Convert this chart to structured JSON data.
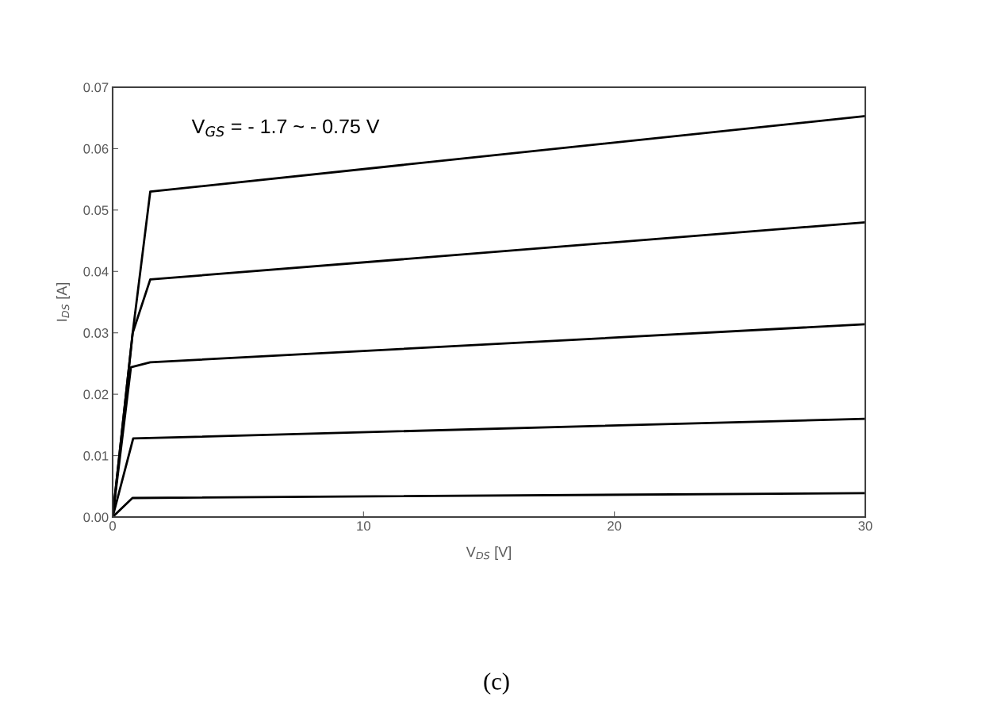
{
  "chart_data": {
    "type": "line",
    "xlabel": "V$_{DS}$ [V]",
    "ylabel": "I$_{DS}$ [A]",
    "annotations": [
      "V$_{GS}$ = - 1.7 ~ - 0.75 V",
      "(c)"
    ],
    "series": [
      {
        "color": "#000000",
        "x": [
          0,
          0.8,
          1.5,
          30
        ],
        "values": [
          0,
          0.03,
          0.053,
          0.0653
        ]
      },
      {
        "color": "#000000",
        "x": [
          0,
          0.8,
          1.5,
          30
        ],
        "values": [
          0,
          0.03,
          0.0387,
          0.048
        ]
      },
      {
        "color": "#000000",
        "x": [
          0,
          0.73,
          1.5,
          30
        ],
        "values": [
          0,
          0.0244,
          0.0252,
          0.0314
        ]
      },
      {
        "color": "#000000",
        "x": [
          0,
          0.82,
          30
        ],
        "values": [
          0,
          0.0128,
          0.016
        ]
      },
      {
        "color": "#000000",
        "x": [
          0,
          0.79,
          30
        ],
        "values": [
          0,
          0.0031,
          0.0039
        ]
      }
    ],
    "xlim": [
      0,
      30
    ],
    "xticks": [
      0,
      10,
      20,
      30
    ],
    "ylim": [
      0,
      0.07
    ],
    "yticks": [
      {
        "value": 0,
        "label": "0.00"
      },
      {
        "value": 0.01,
        "label": "0.01"
      },
      {
        "value": 0.02,
        "label": "0.02"
      },
      {
        "value": 0.03,
        "label": "0.03"
      },
      {
        "value": 0.04,
        "label": "0.04"
      },
      {
        "value": 0.05,
        "label": "0.05"
      },
      {
        "value": 0.06,
        "label": "0.06"
      },
      {
        "value": 0.07,
        "label": "0.07"
      }
    ],
    "grid": false,
    "legend": false,
    "marker": "none",
    "line_style": "solid"
  }
}
